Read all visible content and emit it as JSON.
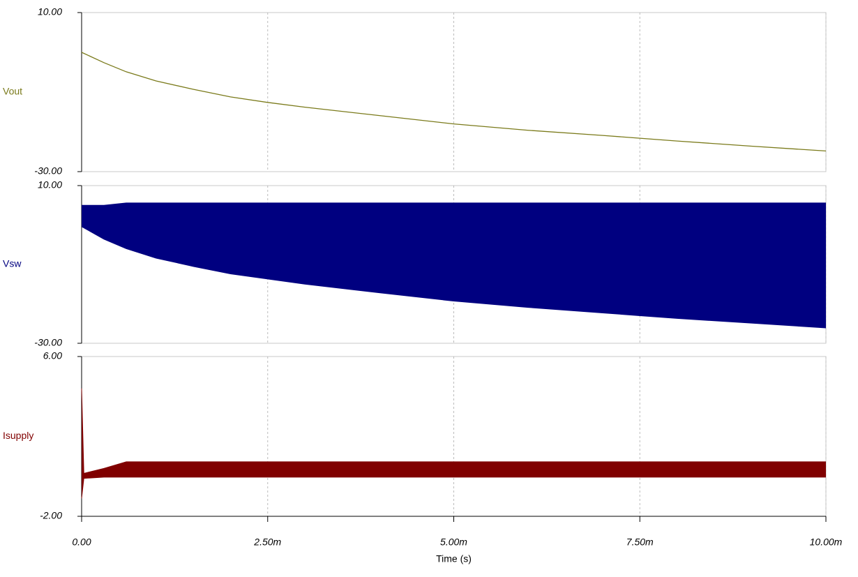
{
  "chart_data": [
    {
      "type": "line",
      "xlim": [
        0,
        0.01
      ],
      "ylim": [
        -30,
        10
      ],
      "yticks": [
        {
          "value": 10,
          "label": "10.00"
        },
        {
          "value": -30,
          "label": "-30.00"
        }
      ],
      "x": [
        0,
        0.0003,
        0.0006,
        0.001,
        0.0015,
        0.002,
        0.0025,
        0.003,
        0.004,
        0.005,
        0.006,
        0.007,
        0.0075,
        0.008,
        0.009,
        0.01
      ],
      "series": [
        {
          "name": "Vout",
          "color": "#7a7a1a",
          "values": [
            0,
            -2.6,
            -4.9,
            -7.2,
            -9.3,
            -11.2,
            -12.6,
            -13.8,
            -15.9,
            -18.0,
            -19.6,
            -20.9,
            -21.6,
            -22.3,
            -23.6,
            -24.8
          ]
        }
      ]
    },
    {
      "type": "band",
      "xlim": [
        0,
        0.01
      ],
      "ylim": [
        -30,
        10
      ],
      "yticks": [
        {
          "value": 10,
          "label": "10.00"
        },
        {
          "value": -30,
          "label": "-30.00"
        }
      ],
      "x": [
        0,
        0.0003,
        0.0006,
        0.001,
        0.0015,
        0.002,
        0.0025,
        0.003,
        0.004,
        0.005,
        0.006,
        0.007,
        0.0075,
        0.008,
        0.009,
        0.01
      ],
      "series": [
        {
          "name": "Vsw",
          "color": "#000080",
          "high": [
            5.0,
            5.0,
            5.6,
            5.6,
            5.6,
            5.6,
            5.6,
            5.6,
            5.6,
            5.6,
            5.6,
            5.6,
            5.6,
            5.6,
            5.6,
            5.6
          ],
          "low": [
            -0.4,
            -3.6,
            -6.0,
            -8.4,
            -10.5,
            -12.4,
            -13.7,
            -15.0,
            -17.2,
            -19.3,
            -20.9,
            -22.3,
            -23.0,
            -23.7,
            -24.9,
            -26.1
          ]
        }
      ]
    },
    {
      "type": "band",
      "xlim": [
        0,
        0.01
      ],
      "ylim": [
        -2,
        6
      ],
      "yticks": [
        {
          "value": 6,
          "label": "6.00"
        },
        {
          "value": -2,
          "label": "-2.00"
        }
      ],
      "xticks": [
        {
          "value": 0,
          "label": "0.00"
        },
        {
          "value": 0.0025,
          "label": "2.50m"
        },
        {
          "value": 0.005,
          "label": "5.00m"
        },
        {
          "value": 0.0075,
          "label": "7.50m"
        },
        {
          "value": 0.01,
          "label": "10.00m"
        }
      ],
      "xlabel": "Time (s)",
      "x": [
        0,
        3e-05,
        0.0003,
        0.0006,
        0.001,
        0.0015,
        0.002,
        0.003,
        0.004,
        0.005,
        0.006,
        0.007,
        0.008,
        0.009,
        0.01
      ],
      "series": [
        {
          "name": "Isupply",
          "color": "#800000",
          "high": [
            4.4,
            0.15,
            0.4,
            0.73,
            0.73,
            0.73,
            0.73,
            0.73,
            0.73,
            0.73,
            0.73,
            0.73,
            0.73,
            0.73,
            0.73
          ],
          "low": [
            -1.1,
            -0.1,
            -0.04,
            -0.04,
            -0.04,
            -0.04,
            -0.04,
            -0.04,
            -0.04,
            -0.04,
            -0.04,
            -0.04,
            -0.04,
            -0.04,
            -0.04
          ]
        }
      ]
    }
  ]
}
